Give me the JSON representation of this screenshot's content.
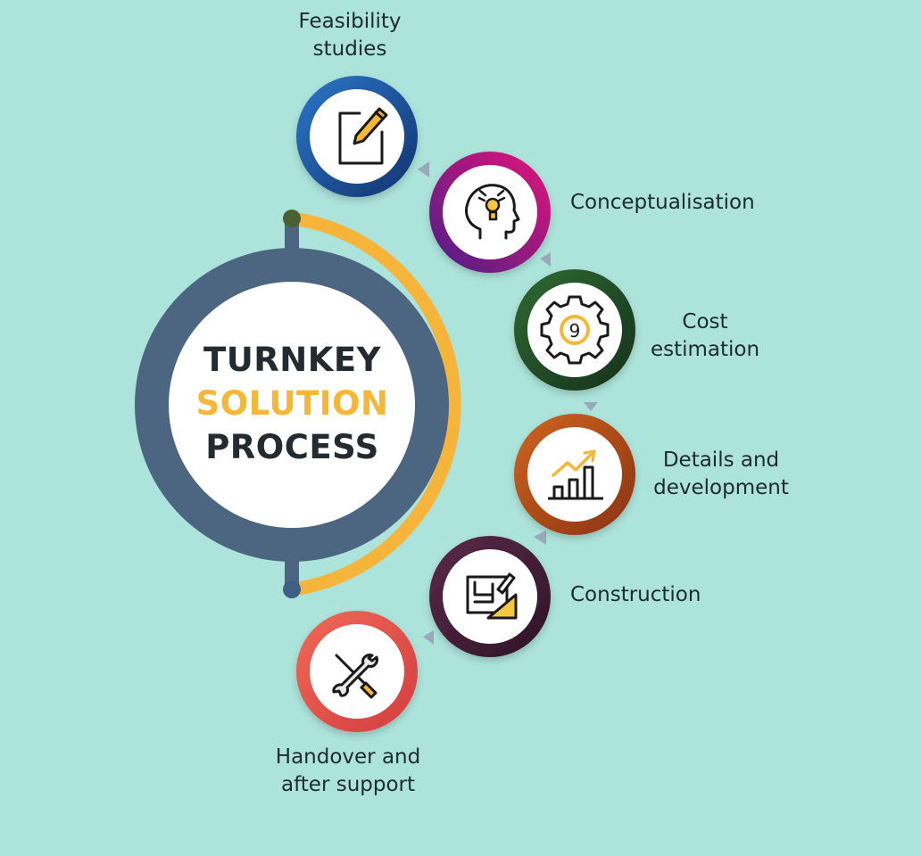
{
  "hub": {
    "line1": "TURNKEY",
    "line2": "SOLUTION",
    "line3": "PROCESS"
  },
  "colors": {
    "background": "#ace3da",
    "hub_ring": "#4c6580",
    "arc": "#f7b43a",
    "title_dark": "#232a30",
    "title_accent": "#f5b735",
    "connector": "#9aa9b8"
  },
  "steps": [
    {
      "line1": "Feasibility",
      "line2": "studies",
      "icon": "notepad-pencil-icon",
      "ring_color": "#1e4d9c"
    },
    {
      "line1": "Conceptualisation",
      "line2": "",
      "icon": "head-lightbulb-icon",
      "ring_color": "#a0147a"
    },
    {
      "line1": "Cost",
      "line2": "estimation",
      "icon": "gear-icon",
      "ring_color": "#1f4a27"
    },
    {
      "line1": "Details and",
      "line2": "development",
      "icon": "bar-chart-growth-icon",
      "ring_color": "#b14a18"
    },
    {
      "line1": "Construction",
      "line2": "",
      "icon": "blueprint-ruler-icon",
      "ring_color": "#4b1f3c"
    },
    {
      "line1": "Handover and",
      "line2": "after support",
      "icon": "wrench-screwdriver-icon",
      "ring_color": "#e0544c"
    }
  ]
}
